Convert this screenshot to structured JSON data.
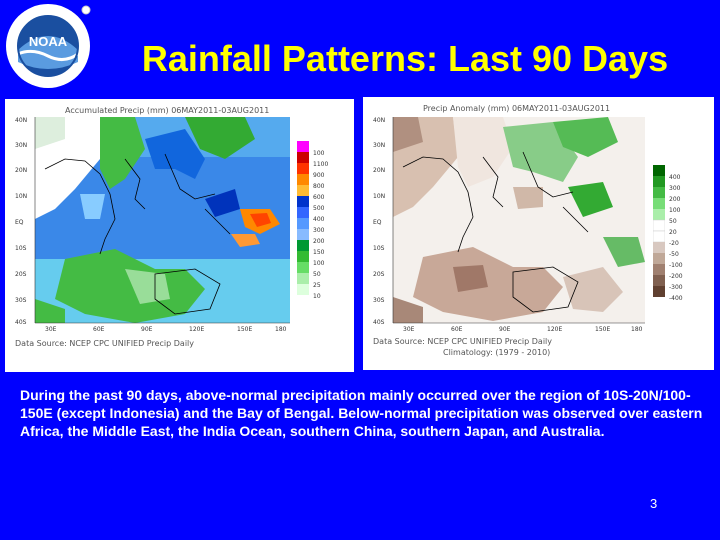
{
  "slide": {
    "background": "#0000ff",
    "title": "Rainfall Patterns: Last 90 Days",
    "title_color": "#ffff00",
    "logo": {
      "icon": "noaa-logo",
      "text": "NOAA"
    },
    "body": "During the past 90 days, above-normal precipitation mainly occurred over the region of 10S-20N/100-150E (except Indonesia) and the Bay of Bengal. Below-normal precipitation was observed over eastern Africa, the Middle East, the India Ocean, southern China, southern Japan, and Australia.",
    "page_number": "3"
  },
  "maps": {
    "left": {
      "icon": "precipitation-total-map",
      "header": "Accumulated Precip (mm) 06MAY2011-03AUG2011",
      "source": "Data Source: NCEP CPC UNIFIED Precip Daily",
      "lat_labels": [
        "40N",
        "30N",
        "20N",
        "10N",
        "EQ",
        "10S",
        "20S",
        "30S",
        "40S"
      ],
      "lon_labels": [
        "30E",
        "60E",
        "90E",
        "120E",
        "150E",
        "180"
      ],
      "legend_labels": [
        "100",
        "1100",
        "900",
        "800",
        "600",
        "500",
        "400",
        "300",
        "200",
        "150",
        "100",
        "50",
        "25",
        "10"
      ],
      "legend_colors": [
        "#ff00ff",
        "#cc0000",
        "#ff3300",
        "#ff8800",
        "#ffbb33",
        "#0033cc",
        "#3366ff",
        "#5599ff",
        "#88bbff",
        "#009933",
        "#33bb33",
        "#66dd66",
        "#aaeeaa",
        "#ddffdd"
      ]
    },
    "right": {
      "icon": "precipitation-anomaly-map",
      "header": "Precip Anomaly (mm) 06MAY2011-03AUG2011",
      "source": "Data Source: NCEP CPC UNIFIED Precip Daily",
      "climatology": "Climatology: (1979 - 2010)",
      "lat_labels": [
        "40N",
        "30N",
        "20N",
        "10N",
        "EQ",
        "10S",
        "20S",
        "30S",
        "40S"
      ],
      "lon_labels": [
        "30E",
        "60E",
        "90E",
        "120E",
        "150E",
        "180"
      ],
      "legend_labels": [
        "400",
        "300",
        "200",
        "100",
        "50",
        "20",
        "-20",
        "-50",
        "-100",
        "-200",
        "-300",
        "-400"
      ],
      "legend_colors": [
        "#006600",
        "#229922",
        "#44bb44",
        "#77dd77",
        "#aaeeaa",
        "#ffffff",
        "#ffffff",
        "#d8c8c0",
        "#c0a898",
        "#a08070",
        "#806050",
        "#604030"
      ]
    }
  }
}
